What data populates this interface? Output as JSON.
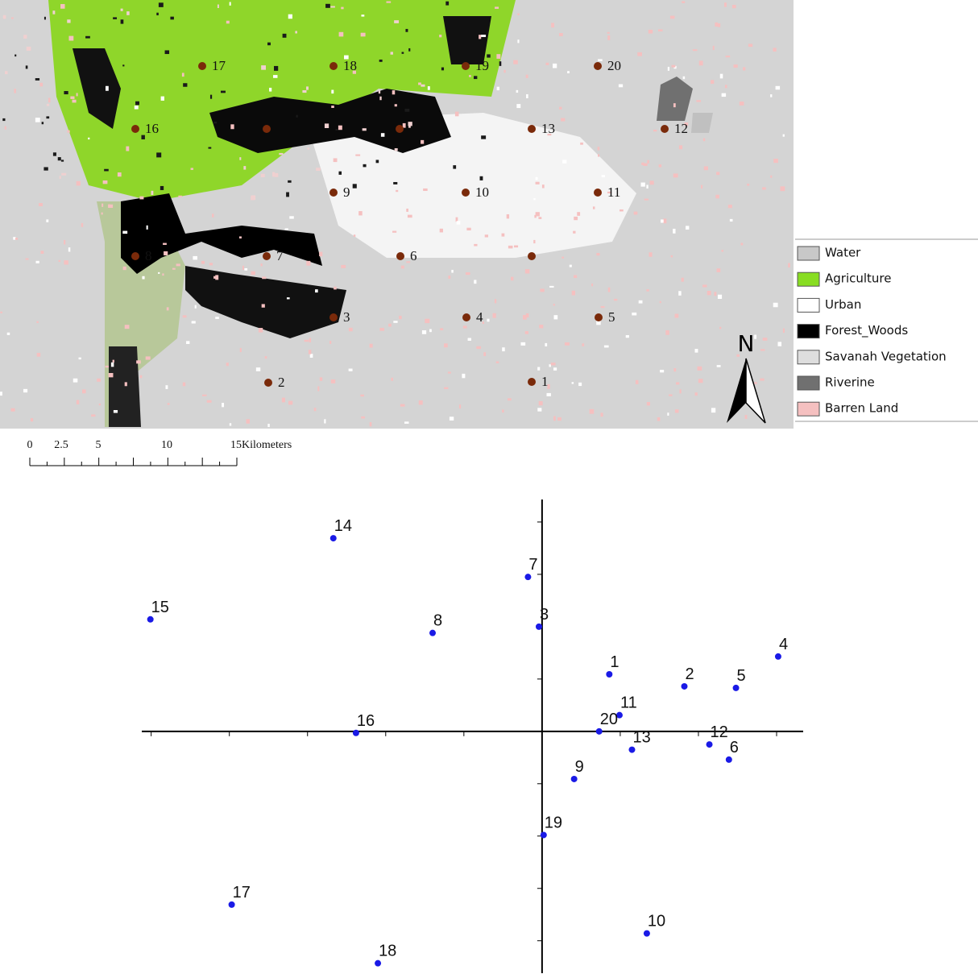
{
  "map": {
    "sites": [
      {
        "label": "1"
      },
      {
        "label": "2"
      },
      {
        "label": "3"
      },
      {
        "label": "4"
      },
      {
        "label": "5"
      },
      {
        "label": "6"
      },
      {
        "label": "7"
      },
      {
        "label": "8"
      },
      {
        "label": "9"
      },
      {
        "label": "10"
      },
      {
        "label": "11"
      },
      {
        "label": "12"
      },
      {
        "label": "13"
      },
      {
        "label": "16"
      },
      {
        "label": "17"
      },
      {
        "label": "18"
      },
      {
        "label": "19"
      },
      {
        "label": "20"
      }
    ],
    "legend": [
      {
        "label": "Water",
        "color": "#c8c8c8"
      },
      {
        "label": "Agriculture",
        "color": "#88dd22"
      },
      {
        "label": "Urban",
        "color": "#ffffff"
      },
      {
        "label": "Forest_Woods",
        "color": "#000000"
      },
      {
        "label": "Savanah Vegetation",
        "color": "#dedede"
      },
      {
        "label": "Riverine",
        "color": "#707070"
      },
      {
        "label": "Barren Land",
        "color": "#f5c0c0"
      }
    ],
    "scale_bar": {
      "labels": [
        "0",
        "2.5",
        "5",
        "10",
        "15"
      ],
      "unit": "Kilometers"
    },
    "north": "N"
  },
  "chart_data": {
    "type": "scatter",
    "labels": [
      "1",
      "2",
      "3",
      "4",
      "5",
      "6",
      "7",
      "8",
      "9",
      "10",
      "11",
      "12",
      "13",
      "14",
      "15",
      "16",
      "17",
      "18",
      "19",
      "20"
    ],
    "x": [
      0.86,
      1.82,
      -0.04,
      3.02,
      2.48,
      2.39,
      -0.18,
      -1.4,
      0.41,
      1.34,
      0.99,
      2.14,
      1.15,
      -2.67,
      -5.01,
      -2.38,
      -3.97,
      -2.1,
      0.02,
      0.73
    ],
    "values": [
      1.09,
      0.86,
      2.0,
      1.43,
      0.83,
      -0.54,
      2.95,
      1.88,
      -0.91,
      -3.86,
      0.31,
      -0.25,
      -0.35,
      3.69,
      2.14,
      -0.03,
      -3.31,
      -4.43,
      -1.98,
      0.0
    ],
    "color": "#1a1ae6",
    "xlim": [
      -5.12,
      3.34
    ],
    "ylim": [
      -4.62,
      4.43
    ],
    "xticks": [
      -5,
      -4,
      -3,
      -2,
      -1,
      0,
      1,
      2,
      3
    ],
    "yticks": [
      -4,
      -3,
      -2,
      -1,
      1,
      2,
      3,
      4
    ]
  }
}
